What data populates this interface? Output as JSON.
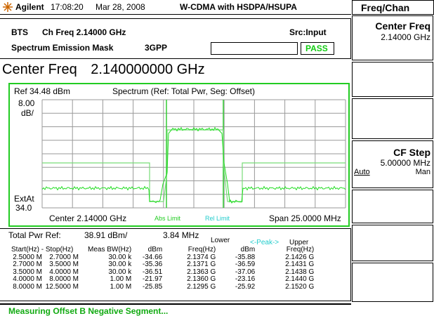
{
  "header": {
    "brand": "Agilent",
    "time": "17:08:20",
    "date": "Mar 28, 2008",
    "mode": "W-CDMA with HSDPA/HSUPA"
  },
  "menu_title": "Freq/Chan",
  "info": {
    "station": "BTS",
    "ch_freq": "Ch Freq 2.14000 GHz",
    "source": "Src:Input",
    "measurement": "Spectrum Emission Mask",
    "standard": "3GPP",
    "result": "PASS"
  },
  "active_function": {
    "label": "Center Freq",
    "value": "2.140000000 GHz"
  },
  "graph": {
    "ref": "Ref 34.48 dBm",
    "title": "Spectrum (Ref: Total Pwr, Seg: Offset)",
    "scale": "8.00",
    "scale_unit": "dB/",
    "ext_att_label": "ExtAt",
    "ext_att": "34.0",
    "center": "Center 2.14000 GHz",
    "abs_limit": "Abs Limit",
    "rel_limit": "Rel Limit",
    "span": "Span 25.0000 MHz"
  },
  "results": {
    "total_pwr_label": "Total Pwr Ref:",
    "total_pwr": "38.91 dBm/",
    "bandwidth": "3.84 MHz",
    "lower": "Lower",
    "peak": "<-Peak->",
    "upper": "Upper",
    "columns": [
      "Start(Hz) - Stop(Hz)",
      "Meas BW(Hz)",
      "dBm",
      "Freq(Hz)",
      "dBm",
      "Freq(Hz)"
    ],
    "rows": [
      [
        "2.5000 M",
        "2.7000 M",
        "30.00 k",
        "-34.66",
        "2.1374 G",
        "-35.88",
        "2.1426 G"
      ],
      [
        "2.7000 M",
        "3.5000 M",
        "30.00 k",
        "-35.36",
        "2.1371 G",
        "-36.59",
        "2.1431 G"
      ],
      [
        "3.5000 M",
        "4.0000 M",
        "30.00 k",
        "-36.51",
        "2.1363 G",
        "-37.06",
        "2.1438 G"
      ],
      [
        "4.0000 M",
        "8.0000 M",
        "1.00 M",
        "-21.97",
        "2.1360 G",
        "-23.16",
        "2.1440 G"
      ],
      [
        "8.0000 M",
        "12.5000 M",
        "1.00 M",
        "-25.85",
        "2.1295 G",
        "-25.92",
        "2.1520 G"
      ]
    ]
  },
  "status": "Measuring Offset B Negative Segment...",
  "softkeys": {
    "center_freq": {
      "label": "Center Freq",
      "value": "2.14000 GHz"
    },
    "cf_step": {
      "label": "CF Step",
      "value": "5.00000 MHz",
      "auto": "Auto",
      "man": "Man"
    }
  }
}
